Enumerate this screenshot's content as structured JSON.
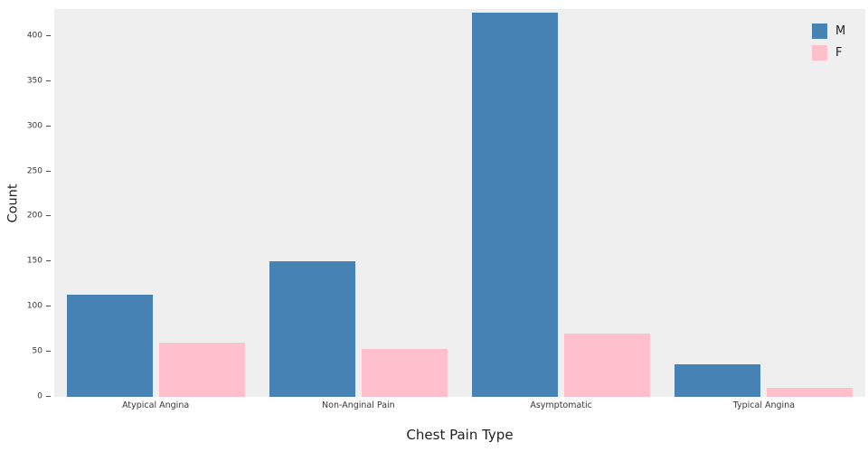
{
  "chart_data": {
    "type": "bar",
    "title": "",
    "xlabel": "Chest Pain Type",
    "ylabel": "Count",
    "categories": [
      "Atypical Angina",
      "Non-Anginal Pain",
      "Asymptomatic",
      "Typical Angina"
    ],
    "series": [
      {
        "name": "M",
        "color": "#4682b4",
        "values": [
          113,
          150,
          426,
          36
        ]
      },
      {
        "name": "F",
        "color": "#ffc0cb",
        "values": [
          60,
          53,
          70,
          10
        ]
      }
    ],
    "ylim": [
      0,
      430
    ],
    "yticks": [
      0,
      50,
      100,
      150,
      200,
      250,
      300,
      350,
      400
    ],
    "legend_position": "top-right",
    "grid": false,
    "plot_background": "#efefef",
    "figure_background": "#ffffff"
  }
}
